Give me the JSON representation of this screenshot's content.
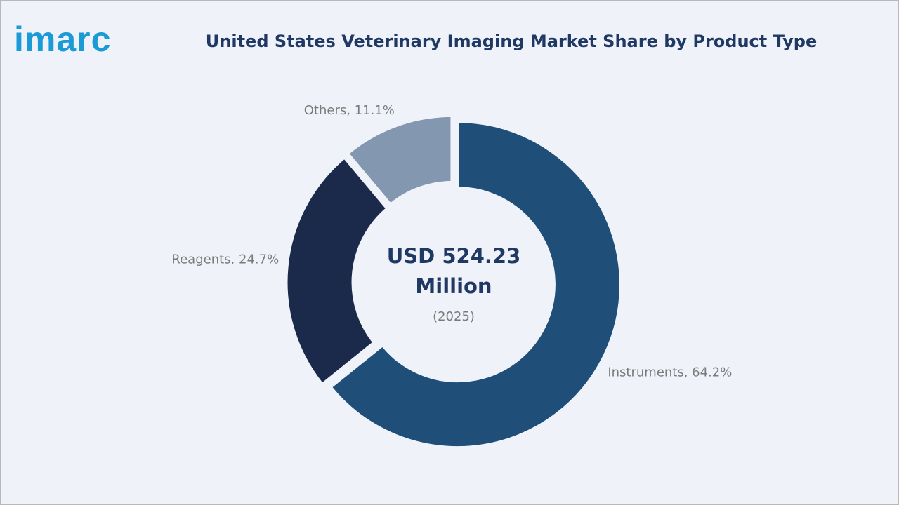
{
  "logo": "imarc",
  "chart_data": {
    "type": "donut",
    "title": "United States Veterinary Imaging Market Share by Product Type",
    "values": [
      64.2,
      24.7,
      11.1
    ],
    "value_labels": [
      "Instruments, 64.2%",
      "Reagents, 24.7%",
      "Others, 11.1%"
    ],
    "colors": [
      "#1f4e79",
      "#1b2a4a",
      "#8497b0"
    ],
    "annotations": [
      "USD 524.23",
      "Million",
      "(2025)"
    ]
  }
}
